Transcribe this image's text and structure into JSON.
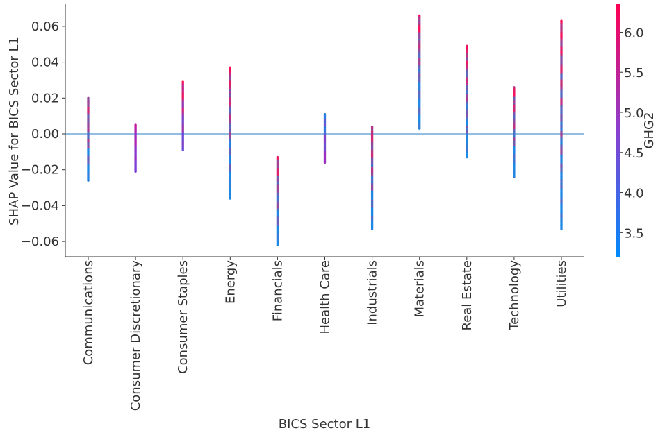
{
  "chart_data": {
    "type": "scatter",
    "title": "",
    "xlabel": "BICS Sector L1",
    "ylabel": "SHAP Value for BICS Sector L1",
    "categories": [
      "Communications",
      "Consumer Discretionary",
      "Consumer Staples",
      "Energy",
      "Financials",
      "Health Care",
      "Industrials",
      "Materials",
      "Real Estate",
      "Technology",
      "Utilities"
    ],
    "ylim": [
      -0.068,
      0.072
    ],
    "yticks": [
      -0.06,
      -0.04,
      -0.02,
      0.0,
      0.02,
      0.04,
      0.06
    ],
    "ytick_labels": [
      "−0.06",
      "−0.04",
      "−0.02",
      "0.00",
      "0.02",
      "0.04",
      "0.06"
    ],
    "baseline": 0.0,
    "grid": false,
    "series": [
      {
        "category": "Communications",
        "min": -0.026,
        "max": 0.02,
        "low_color": "#1e88e5",
        "high_color": "#ff0d57"
      },
      {
        "category": "Consumer Discretionary",
        "min": -0.021,
        "max": 0.005,
        "low_color": "#7b3fd8",
        "high_color": "#c2189f"
      },
      {
        "category": "Consumer Staples",
        "min": -0.009,
        "max": 0.029,
        "low_color": "#6a4ad6",
        "high_color": "#ff0d57"
      },
      {
        "category": "Energy",
        "min": -0.036,
        "max": 0.037,
        "low_color": "#1e88e5",
        "high_color": "#ff0d57"
      },
      {
        "category": "Financials",
        "min": -0.062,
        "max": -0.013,
        "low_color": "#1e88e5",
        "high_color": "#ff0d57"
      },
      {
        "category": "Health Care",
        "min": -0.016,
        "max": 0.011,
        "low_color": "#9b2fc0",
        "high_color": "#1e88e5"
      },
      {
        "category": "Industrials",
        "min": -0.053,
        "max": 0.004,
        "low_color": "#1e88e5",
        "high_color": "#ff0d57"
      },
      {
        "category": "Materials",
        "min": 0.003,
        "max": 0.066,
        "low_color": "#1e88e5",
        "high_color": "#ff0d57"
      },
      {
        "category": "Real Estate",
        "min": -0.013,
        "max": 0.049,
        "low_color": "#1e88e5",
        "high_color": "#ff0d57"
      },
      {
        "category": "Technology",
        "min": -0.024,
        "max": 0.026,
        "low_color": "#1e88e5",
        "high_color": "#ff0d57"
      },
      {
        "category": "Utilities",
        "min": -0.053,
        "max": 0.063,
        "low_color": "#1e88e5",
        "high_color": "#ff0d57"
      }
    ],
    "colorbar": {
      "label": "GHG2",
      "min": 3.2,
      "max": 6.35,
      "ticks": [
        3.5,
        4.0,
        4.5,
        5.0,
        5.5,
        6.0
      ],
      "tick_labels": [
        "3.5",
        "4.0",
        "4.5",
        "5.0",
        "5.5",
        "6.0"
      ],
      "low_color": "#008afb",
      "high_color": "#ff0052"
    },
    "colors": {
      "baseline": "#6fa8dc",
      "axis": "#333333"
    }
  }
}
